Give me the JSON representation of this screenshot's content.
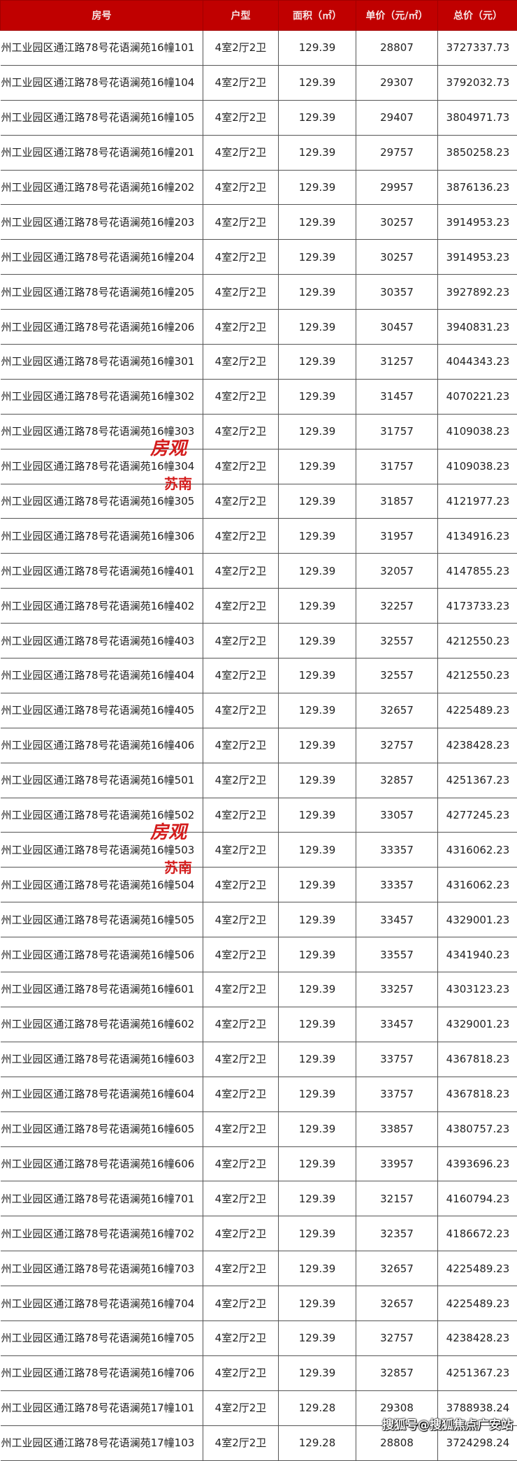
{
  "colors": {
    "header_bg": "#c00000",
    "watermark": "#d41c1c"
  },
  "table": {
    "headers": [
      "房号",
      "户型",
      "面积（㎡）",
      "单价（元/㎡）",
      "总价（元）"
    ],
    "rows": [
      [
        "州工业园区通江路78号花语澜苑16幢101",
        "4室2厅2卫",
        "129.39",
        "28807",
        "3727337.73"
      ],
      [
        "州工业园区通江路78号花语澜苑16幢104",
        "4室2厅2卫",
        "129.39",
        "29307",
        "3792032.73"
      ],
      [
        "州工业园区通江路78号花语澜苑16幢105",
        "4室2厅2卫",
        "129.39",
        "29407",
        "3804971.73"
      ],
      [
        "州工业园区通江路78号花语澜苑16幢201",
        "4室2厅2卫",
        "129.39",
        "29757",
        "3850258.23"
      ],
      [
        "州工业园区通江路78号花语澜苑16幢202",
        "4室2厅2卫",
        "129.39",
        "29957",
        "3876136.23"
      ],
      [
        "州工业园区通江路78号花语澜苑16幢203",
        "4室2厅2卫",
        "129.39",
        "30257",
        "3914953.23"
      ],
      [
        "州工业园区通江路78号花语澜苑16幢204",
        "4室2厅2卫",
        "129.39",
        "30257",
        "3914953.23"
      ],
      [
        "州工业园区通江路78号花语澜苑16幢205",
        "4室2厅2卫",
        "129.39",
        "30357",
        "3927892.23"
      ],
      [
        "州工业园区通江路78号花语澜苑16幢206",
        "4室2厅2卫",
        "129.39",
        "30457",
        "3940831.23"
      ],
      [
        "州工业园区通江路78号花语澜苑16幢301",
        "4室2厅2卫",
        "129.39",
        "31257",
        "4044343.23"
      ],
      [
        "州工业园区通江路78号花语澜苑16幢302",
        "4室2厅2卫",
        "129.39",
        "31457",
        "4070221.23"
      ],
      [
        "州工业园区通江路78号花语澜苑16幢303",
        "4室2厅2卫",
        "129.39",
        "31757",
        "4109038.23"
      ],
      [
        "州工业园区通江路78号花语澜苑16幢304",
        "4室2厅2卫",
        "129.39",
        "31757",
        "4109038.23"
      ],
      [
        "州工业园区通江路78号花语澜苑16幢305",
        "4室2厅2卫",
        "129.39",
        "31857",
        "4121977.23"
      ],
      [
        "州工业园区通江路78号花语澜苑16幢306",
        "4室2厅2卫",
        "129.39",
        "31957",
        "4134916.23"
      ],
      [
        "州工业园区通江路78号花语澜苑16幢401",
        "4室2厅2卫",
        "129.39",
        "32057",
        "4147855.23"
      ],
      [
        "州工业园区通江路78号花语澜苑16幢402",
        "4室2厅2卫",
        "129.39",
        "32257",
        "4173733.23"
      ],
      [
        "州工业园区通江路78号花语澜苑16幢403",
        "4室2厅2卫",
        "129.39",
        "32557",
        "4212550.23"
      ],
      [
        "州工业园区通江路78号花语澜苑16幢404",
        "4室2厅2卫",
        "129.39",
        "32557",
        "4212550.23"
      ],
      [
        "州工业园区通江路78号花语澜苑16幢405",
        "4室2厅2卫",
        "129.39",
        "32657",
        "4225489.23"
      ],
      [
        "州工业园区通江路78号花语澜苑16幢406",
        "4室2厅2卫",
        "129.39",
        "32757",
        "4238428.23"
      ],
      [
        "州工业园区通江路78号花语澜苑16幢501",
        "4室2厅2卫",
        "129.39",
        "32857",
        "4251367.23"
      ],
      [
        "州工业园区通江路78号花语澜苑16幢502",
        "4室2厅2卫",
        "129.39",
        "33057",
        "4277245.23"
      ],
      [
        "州工业园区通江路78号花语澜苑16幢503",
        "4室2厅2卫",
        "129.39",
        "33357",
        "4316062.23"
      ],
      [
        "州工业园区通江路78号花语澜苑16幢504",
        "4室2厅2卫",
        "129.39",
        "33357",
        "4316062.23"
      ],
      [
        "州工业园区通江路78号花语澜苑16幢505",
        "4室2厅2卫",
        "129.39",
        "33457",
        "4329001.23"
      ],
      [
        "州工业园区通江路78号花语澜苑16幢506",
        "4室2厅2卫",
        "129.39",
        "33557",
        "4341940.23"
      ],
      [
        "州工业园区通江路78号花语澜苑16幢601",
        "4室2厅2卫",
        "129.39",
        "33257",
        "4303123.23"
      ],
      [
        "州工业园区通江路78号花语澜苑16幢602",
        "4室2厅2卫",
        "129.39",
        "33457",
        "4329001.23"
      ],
      [
        "州工业园区通江路78号花语澜苑16幢603",
        "4室2厅2卫",
        "129.39",
        "33757",
        "4367818.23"
      ],
      [
        "州工业园区通江路78号花语澜苑16幢604",
        "4室2厅2卫",
        "129.39",
        "33757",
        "4367818.23"
      ],
      [
        "州工业园区通江路78号花语澜苑16幢605",
        "4室2厅2卫",
        "129.39",
        "33857",
        "4380757.23"
      ],
      [
        "州工业园区通江路78号花语澜苑16幢606",
        "4室2厅2卫",
        "129.39",
        "33957",
        "4393696.23"
      ],
      [
        "州工业园区通江路78号花语澜苑16幢701",
        "4室2厅2卫",
        "129.39",
        "32157",
        "4160794.23"
      ],
      [
        "州工业园区通江路78号花语澜苑16幢702",
        "4室2厅2卫",
        "129.39",
        "32357",
        "4186672.23"
      ],
      [
        "州工业园区通江路78号花语澜苑16幢703",
        "4室2厅2卫",
        "129.39",
        "32657",
        "4225489.23"
      ],
      [
        "州工业园区通江路78号花语澜苑16幢704",
        "4室2厅2卫",
        "129.39",
        "32657",
        "4225489.23"
      ],
      [
        "州工业园区通江路78号花语澜苑16幢705",
        "4室2厅2卫",
        "129.39",
        "32757",
        "4238428.23"
      ],
      [
        "州工业园区通江路78号花语澜苑16幢706",
        "4室2厅2卫",
        "129.39",
        "32857",
        "4251367.23"
      ],
      [
        "州工业园区通江路78号花语澜苑17幢101",
        "4室2厅2卫",
        "129.28",
        "29308",
        "3788938.24"
      ],
      [
        "州工业园区通江路78号花语澜苑17幢103",
        "4室2厅2卫",
        "129.28",
        "28808",
        "3724298.24"
      ]
    ]
  },
  "watermark": {
    "main": "房观",
    "sub": "苏南"
  },
  "source_watermark": "搜狐号@搜狐焦点广安站"
}
